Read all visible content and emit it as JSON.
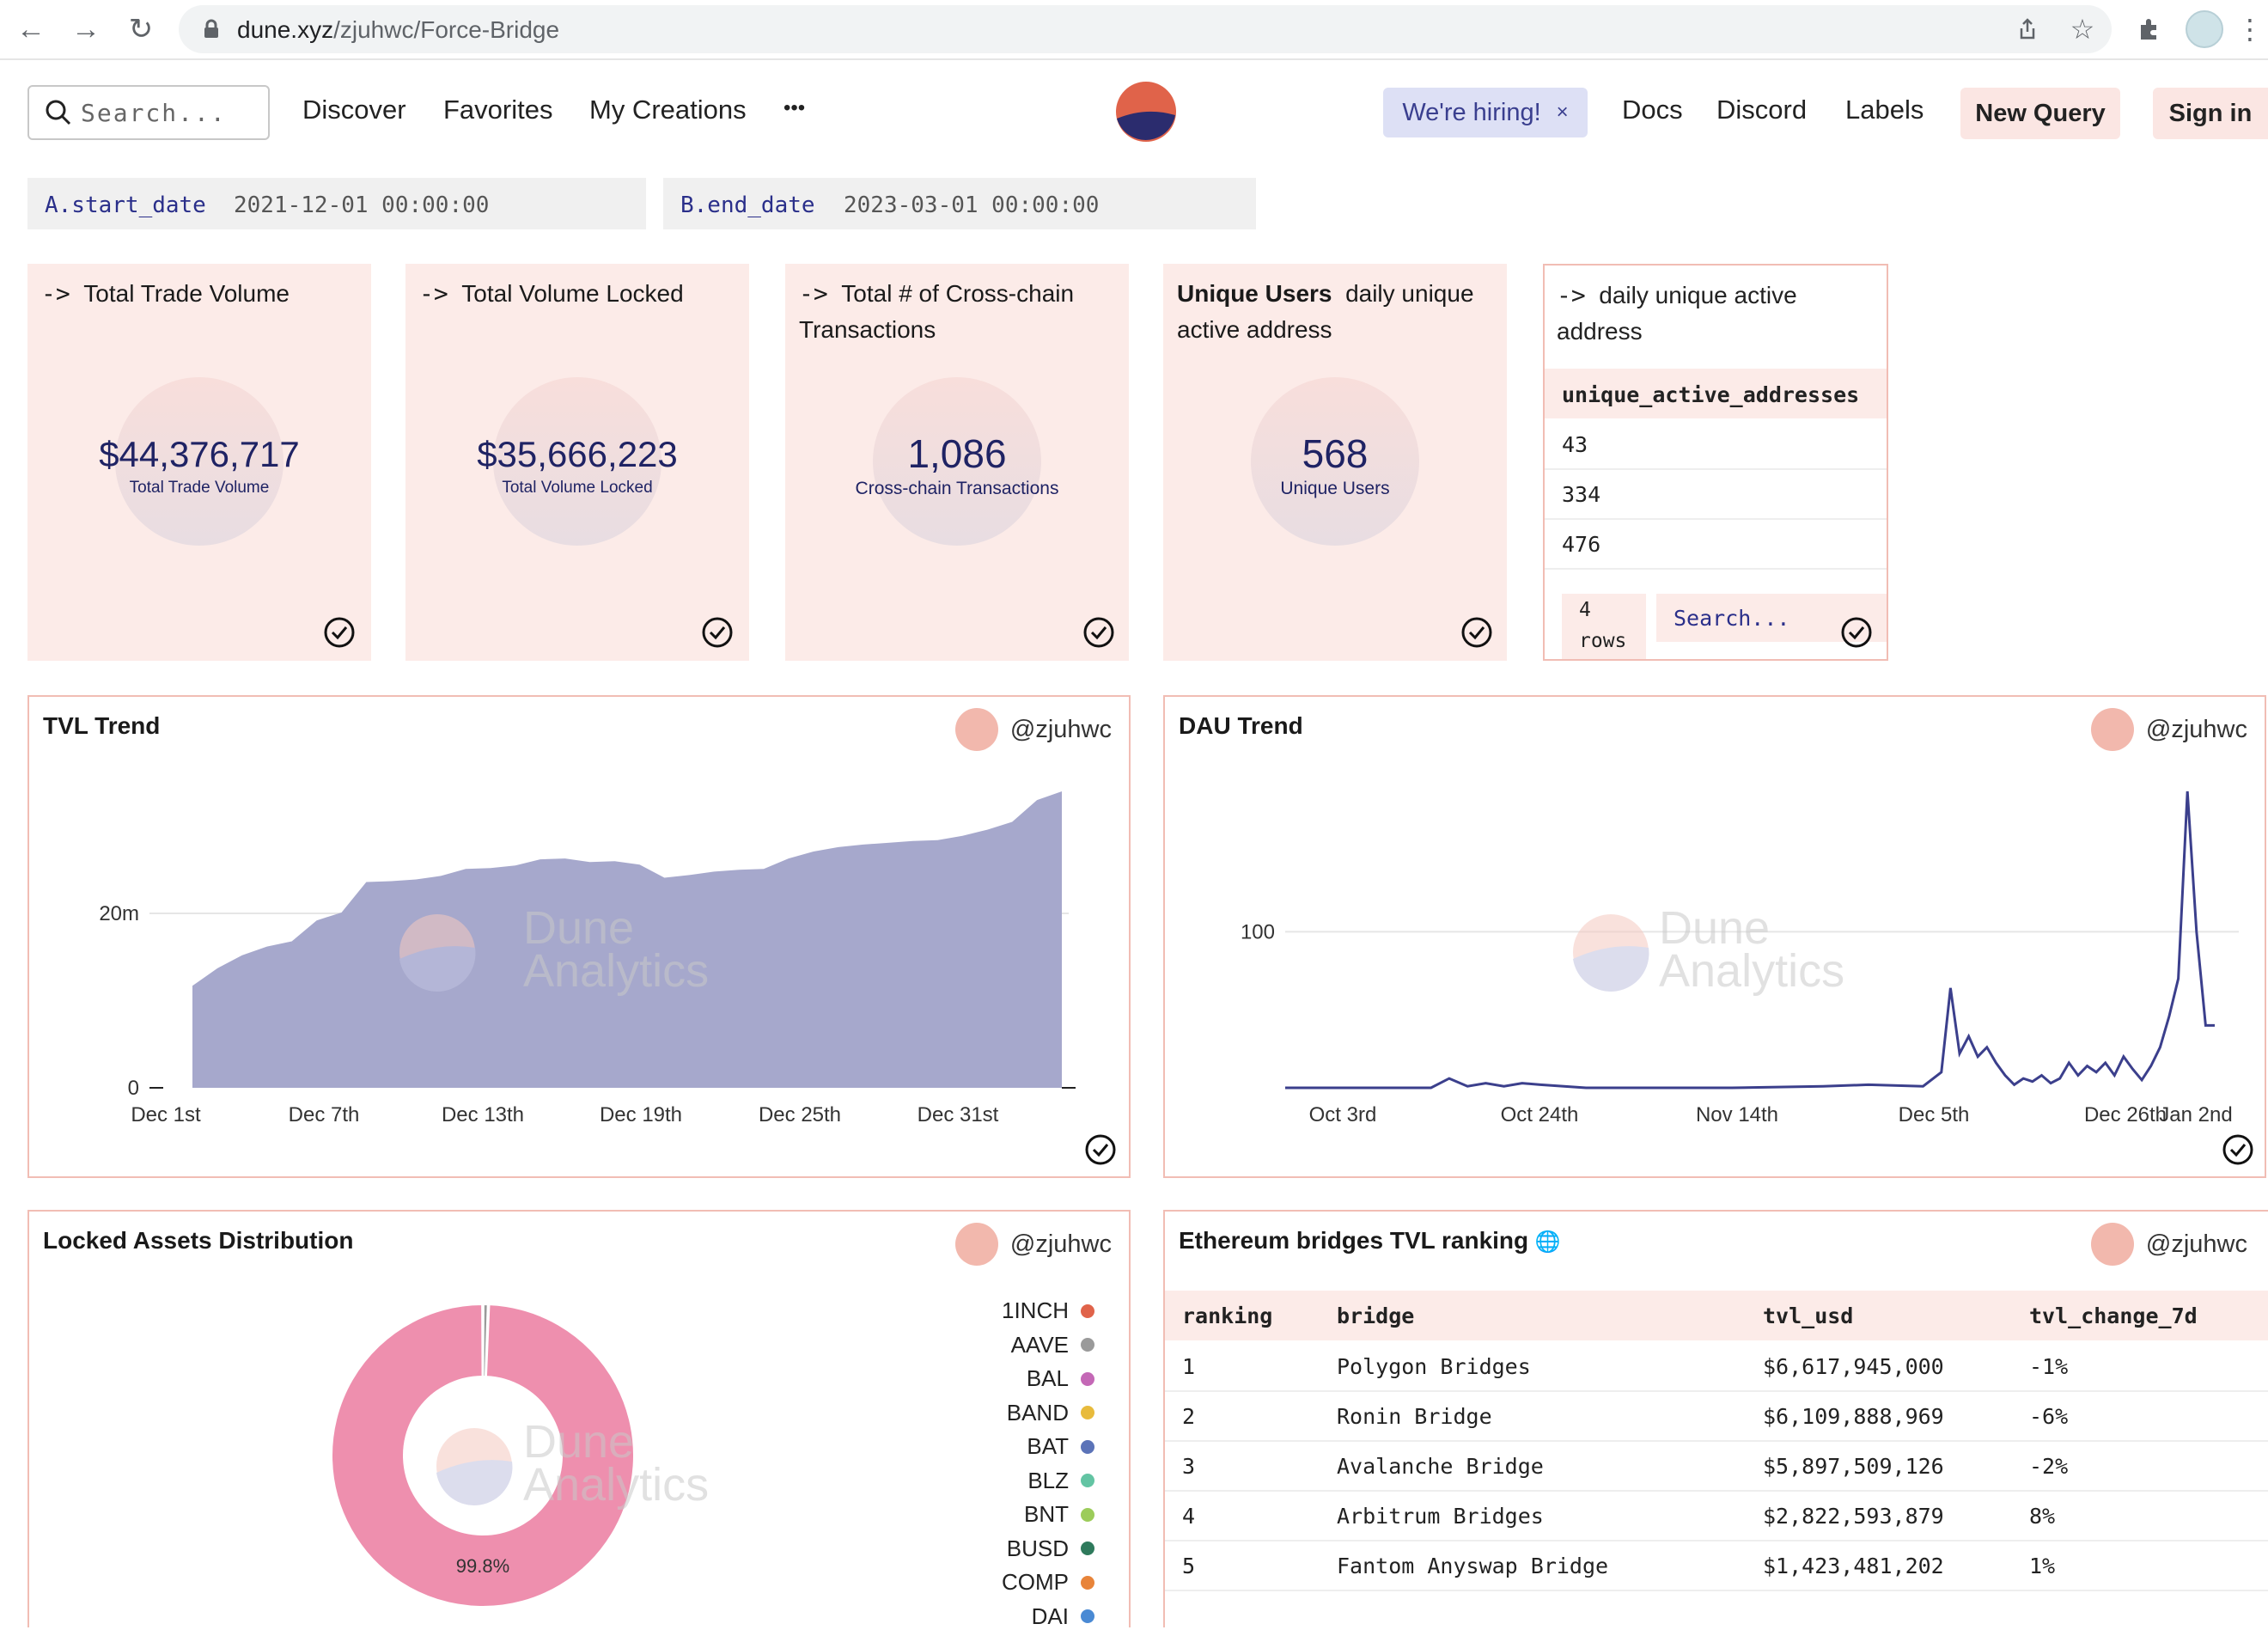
{
  "browser": {
    "url_domain": "dune.xyz",
    "url_path": "/zjuhwc/Force-Bridge"
  },
  "nav": {
    "search_placeholder": "Search...",
    "links": [
      "Discover",
      "Favorites",
      "My Creations"
    ],
    "more": "•••",
    "hiring": "We're hiring!",
    "hiring_close": "×",
    "right_links": [
      "Docs",
      "Discord",
      "Labels"
    ],
    "new_query": "New Query",
    "sign_in": "Sign in"
  },
  "params": [
    {
      "key": "A.start_date",
      "value": "2021-12-01 00:00:00"
    },
    {
      "key": "B.end_date",
      "value": "2023-03-01 00:00:00"
    }
  ],
  "counters": [
    {
      "arrow": "->",
      "title": "Total Trade Volume",
      "value": "$44,376,717",
      "label": "Total Trade Volume"
    },
    {
      "arrow": "->",
      "title": "Total Volume Locked",
      "value": "$35,666,223",
      "label": "Total Volume Locked"
    },
    {
      "arrow": "->",
      "title": "Total # of Cross-chain Transactions",
      "value": "1,086",
      "label": "Cross-chain Transactions"
    },
    {
      "bold": "Unique Users",
      "title": "daily unique active address",
      "value": "568",
      "label": "Unique Users"
    }
  ],
  "dau_table": {
    "arrow": "->",
    "title": "daily unique active address",
    "column": "unique_active_addresses",
    "rows": [
      "43",
      "334",
      "476"
    ],
    "rows_count": "4",
    "rows_word": "rows",
    "search_placeholder": "Search..."
  },
  "owner": "@zjuhwc",
  "watermark": {
    "line1": "Dune",
    "line2": "Analytics"
  },
  "tvl_panel": {
    "title": "TVL Trend",
    "chart_data": {
      "type": "area",
      "x_ticks": [
        "Dec 1st",
        "Dec 7th",
        "Dec 13th",
        "Dec 19th",
        "Dec 25th",
        "Dec 31st"
      ],
      "y_ticks": [
        "0",
        "20m"
      ],
      "ylim": [
        0,
        34000000
      ],
      "x": [
        "Dec 1",
        "Dec 2",
        "Dec 3",
        "Dec 4",
        "Dec 5",
        "Dec 6",
        "Dec 7",
        "Dec 8",
        "Dec 9",
        "Dec 10",
        "Dec 11",
        "Dec 12",
        "Dec 13",
        "Dec 14",
        "Dec 15",
        "Dec 16",
        "Dec 17",
        "Dec 18",
        "Dec 19",
        "Dec 20",
        "Dec 21",
        "Dec 22",
        "Dec 23",
        "Dec 24",
        "Dec 25",
        "Dec 26",
        "Dec 27",
        "Dec 28",
        "Dec 29",
        "Dec 30",
        "Dec 31",
        "Jan 1",
        "Jan 2",
        "Jan 3",
        "Jan 4",
        "Jan 5"
      ],
      "values": [
        11700000,
        13700000,
        15200000,
        16200000,
        16800000,
        19200000,
        20100000,
        23600000,
        23700000,
        23900000,
        24300000,
        25100000,
        25200000,
        25500000,
        26200000,
        26300000,
        25900000,
        26000000,
        25600000,
        24100000,
        24400000,
        24800000,
        25000000,
        25100000,
        26300000,
        27100000,
        27600000,
        27900000,
        28100000,
        28300000,
        28400000,
        28900000,
        29600000,
        30500000,
        33000000,
        34000000
      ],
      "grid": true,
      "legend": "none",
      "color": "#a6a8cc"
    }
  },
  "dau_panel": {
    "title": "DAU Trend",
    "chart_data": {
      "type": "line",
      "x_ticks": [
        "Oct 3rd",
        "Oct 24th",
        "Nov 14th",
        "Dec 5th",
        "Dec 26th",
        "Jan 2nd"
      ],
      "y_ticks": [
        "100"
      ],
      "ylim": [
        0,
        190
      ],
      "x": [
        "Sep 22",
        "Oct 1",
        "Oct 8",
        "Oct 10",
        "Oct 12",
        "Oct 14",
        "Oct 16",
        "Oct 18",
        "Oct 20",
        "Oct 25",
        "Nov 1",
        "Nov 10",
        "Nov 20",
        "Nov 25",
        "Dec 1",
        "Dec 3",
        "Dec 4",
        "Dec 5",
        "Dec 6",
        "Dec 7",
        "Dec 8",
        "Dec 9",
        "Dec 10",
        "Dec 11",
        "Dec 12",
        "Dec 13",
        "Dec 14",
        "Dec 15",
        "Dec 16",
        "Dec 17",
        "Dec 18",
        "Dec 19",
        "Dec 20",
        "Dec 21",
        "Dec 22",
        "Dec 23",
        "Dec 24",
        "Dec 25",
        "Dec 26",
        "Dec 27",
        "Dec 28",
        "Dec 29",
        "Dec 30",
        "Dec 31",
        "Jan 1",
        "Jan 2"
      ],
      "values": [
        0,
        0,
        0,
        6,
        1,
        3,
        1,
        3,
        2,
        0,
        0,
        0,
        1,
        2,
        1,
        10,
        64,
        22,
        33,
        20,
        26,
        16,
        8,
        2,
        6,
        4,
        8,
        3,
        6,
        16,
        8,
        14,
        10,
        16,
        8,
        20,
        12,
        5,
        14,
        26,
        46,
        70,
        190,
        100,
        40,
        40
      ],
      "grid": true,
      "legend": "none",
      "color": "#3b3f8c"
    }
  },
  "assets_panel": {
    "title": "Locked Assets Distribution",
    "chart_data": {
      "type": "pie",
      "categories": [
        "1INCH",
        "AAVE",
        "BAL",
        "BAND",
        "BAT",
        "BLZ",
        "BNT",
        "BUSD",
        "COMP",
        "DAI"
      ],
      "colors": [
        "#e0634a",
        "#9a9a9a",
        "#c468b6",
        "#e8bb3c",
        "#5b73b8",
        "#63c4a3",
        "#9ccc5a",
        "#2f7a5c",
        "#e8843a",
        "#4a8ad4"
      ],
      "big_slice_percent": "99.8%",
      "main_share": 0.998,
      "main_color": "#ee8fae",
      "legend": "right"
    }
  },
  "bridges_panel": {
    "title": "Ethereum bridges TVL ranking",
    "globe": "🌐",
    "columns": [
      "ranking",
      "bridge",
      "tvl_usd",
      "tvl_change_7d"
    ],
    "rows": [
      [
        "1",
        "Polygon Bridges",
        "$6,617,945,000",
        "-1%"
      ],
      [
        "2",
        "Ronin Bridge",
        "$6,109,888,969",
        "-6%"
      ],
      [
        "3",
        "Avalanche Bridge",
        "$5,897,509,126",
        "-2%"
      ],
      [
        "4",
        "Arbitrum Bridges",
        "$2,822,593,879",
        "8%"
      ],
      [
        "5",
        "Fantom Anyswap Bridge",
        "$1,423,481,202",
        "1%"
      ]
    ]
  }
}
